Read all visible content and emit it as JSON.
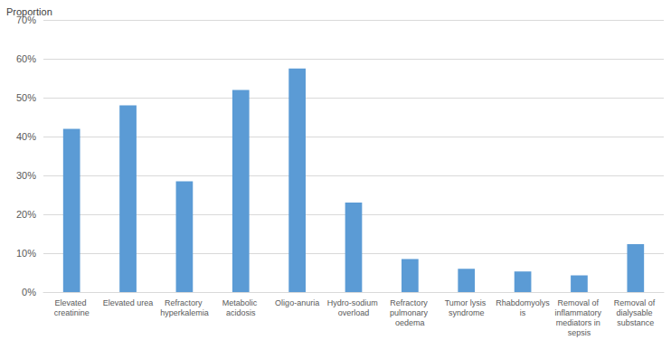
{
  "chart_data": {
    "type": "bar",
    "y_label": "Proportion",
    "categories": [
      "Elevated creatinine",
      "Elevated urea",
      "Refractory hyperkalemia",
      "Metabolic acidosis",
      "Oligo-anuria",
      "Hydro-sodium overload",
      "Refractory pulmonary oedema",
      "Tumor lysis syndrome",
      "Rhabdomyolysis",
      "Removal of inflammatory mediators in sepsis",
      "Removal of dialysable substance"
    ],
    "values": [
      42,
      48,
      28.5,
      52,
      57.5,
      23,
      8.5,
      6,
      5.3,
      4.3,
      12.3
    ],
    "color": "#5b9bd5",
    "ylim": [
      0,
      70
    ],
    "yticks": [
      {
        "value": 0,
        "label": "0%"
      },
      {
        "value": 10,
        "label": "10%"
      },
      {
        "value": 20,
        "label": "20%"
      },
      {
        "value": 30,
        "label": "30%"
      },
      {
        "value": 40,
        "label": "40%"
      },
      {
        "value": 50,
        "label": "50%"
      },
      {
        "value": 60,
        "label": "60%"
      },
      {
        "value": 70,
        "label": "70%"
      }
    ],
    "grid": true
  }
}
